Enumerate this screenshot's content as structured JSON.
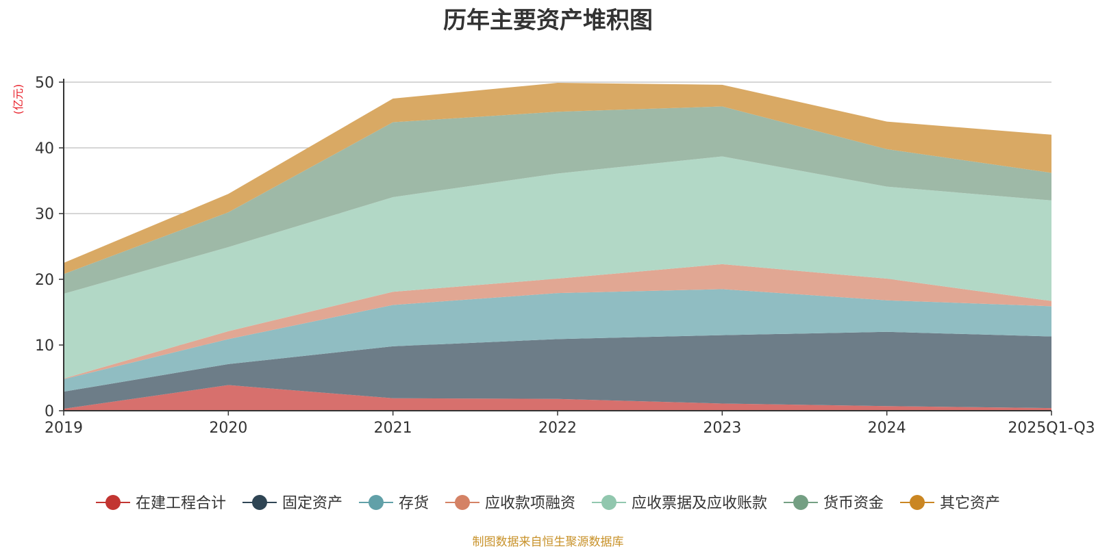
{
  "chart_data": {
    "type": "area",
    "stacked": true,
    "title": "历年主要资产堆积图",
    "ylabel": "(亿元)",
    "xlabel": "",
    "categories": [
      "2019",
      "2020",
      "2021",
      "2022",
      "2023",
      "2024",
      "2025Q1-Q3"
    ],
    "ylim": [
      0,
      50
    ],
    "yticks": [
      0,
      10,
      20,
      30,
      40,
      50
    ],
    "grid": true,
    "legend_position": "bottom",
    "series": [
      {
        "name": "在建工程合计",
        "color": "#c23531",
        "area_color": "#d7706d",
        "values": [
          0.3,
          3.9,
          1.9,
          1.8,
          1.1,
          0.7,
          0.4
        ]
      },
      {
        "name": "固定资产",
        "color": "#2f4554",
        "area_color": "#6d7d88",
        "values": [
          2.6,
          3.2,
          7.9,
          9.1,
          10.4,
          11.3,
          10.9
        ]
      },
      {
        "name": "存货",
        "color": "#61a0a8",
        "area_color": "#90bdc2",
        "values": [
          1.9,
          3.8,
          6.3,
          7.0,
          7.0,
          4.8,
          4.6
        ]
      },
      {
        "name": "应收款项融资",
        "color": "#d48265",
        "area_color": "#e1a793",
        "values": [
          0.1,
          1.2,
          2.0,
          2.2,
          3.8,
          3.3,
          0.8
        ]
      },
      {
        "name": "应收票据及应收账款",
        "color": "#91c7ae",
        "area_color": "#b2d8c6",
        "values": [
          12.9,
          12.8,
          14.4,
          16.0,
          16.4,
          14.0,
          15.3
        ]
      },
      {
        "name": "货币资金",
        "color": "#749f83",
        "area_color": "#9eb9a7",
        "values": [
          3.0,
          5.3,
          11.4,
          9.4,
          7.6,
          5.7,
          4.2
        ]
      },
      {
        "name": "其它资产",
        "color": "#ca8622",
        "area_color": "#d9a964",
        "values": [
          1.7,
          2.8,
          3.6,
          4.4,
          3.3,
          4.2,
          5.8
        ]
      }
    ]
  },
  "source_note": "制图数据来自恒生聚源数据库"
}
